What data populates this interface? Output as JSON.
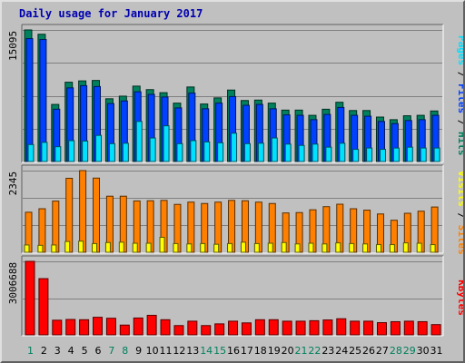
{
  "title": "Daily usage for January 2017",
  "colors": {
    "hits": "#00805c",
    "files": "#0040ff",
    "pages": "#00e0ff",
    "visits": "#ffff00",
    "sites": "#ff8000",
    "kbytes": "#ff0000",
    "weekend_label": "#00805c",
    "weekday_label": "#000000"
  },
  "chart_data": [
    {
      "type": "bar",
      "panel": "hits-files-pages",
      "categories": [
        "1",
        "2",
        "3",
        "4",
        "5",
        "6",
        "7",
        "8",
        "9",
        "10",
        "11",
        "12",
        "13",
        "14",
        "15",
        "16",
        "17",
        "18",
        "19",
        "20",
        "21",
        "22",
        "23",
        "24",
        "25",
        "26",
        "27",
        "28",
        "29",
        "30",
        "31"
      ],
      "weekend_days": [
        "1",
        "7",
        "8",
        "14",
        "15",
        "21",
        "22",
        "28",
        "29"
      ],
      "ymax_label": "15095",
      "ylim": [
        0,
        15095
      ],
      "legend": [
        {
          "name": "Hits",
          "color_key": "hits"
        },
        {
          "name": "Files",
          "color_key": "files"
        },
        {
          "name": "Pages",
          "color_key": "pages"
        }
      ],
      "legend_separator": " / ",
      "series": [
        {
          "name": "Hits",
          "color_key": "hits",
          "values": [
            15095,
            14600,
            6550,
            9100,
            9250,
            9300,
            7200,
            7500,
            8650,
            8250,
            7900,
            6700,
            8550,
            6600,
            7300,
            8200,
            7000,
            7050,
            6700,
            5900,
            5900,
            5300,
            6000,
            6800,
            5850,
            5850,
            5100,
            4800,
            5250,
            5300,
            5800
          ]
        },
        {
          "name": "Files",
          "color_key": "files",
          "values": [
            14100,
            14000,
            6000,
            8450,
            8700,
            8600,
            6650,
            6950,
            8000,
            7700,
            7400,
            6150,
            7850,
            6050,
            6700,
            7450,
            6450,
            6550,
            6050,
            5350,
            5300,
            4800,
            5400,
            6200,
            5300,
            5200,
            4600,
            4350,
            4700,
            4800,
            5300
          ]
        },
        {
          "name": "Pages",
          "color_key": "pages",
          "values": [
            1950,
            2200,
            1700,
            2400,
            2350,
            3000,
            2050,
            2100,
            4600,
            2700,
            4100,
            2050,
            2400,
            2250,
            2150,
            3250,
            2050,
            2100,
            2700,
            2000,
            1850,
            2000,
            1650,
            2100,
            1400,
            1550,
            1400,
            1550,
            1650,
            1550,
            1550
          ]
        }
      ]
    },
    {
      "type": "bar",
      "panel": "sites-visits",
      "ymax_label": "2345",
      "ylim": [
        0,
        2345
      ],
      "legend": [
        {
          "name": "Sites",
          "color_key": "sites"
        },
        {
          "name": "Visits",
          "color_key": "visits"
        }
      ],
      "legend_separator": " / ",
      "series": [
        {
          "name": "Sites",
          "color_key": "sites",
          "values": [
            1150,
            1250,
            1470,
            2125,
            2345,
            2130,
            1610,
            1610,
            1475,
            1480,
            1490,
            1375,
            1440,
            1400,
            1440,
            1490,
            1480,
            1440,
            1400,
            1130,
            1140,
            1220,
            1310,
            1380,
            1250,
            1210,
            1100,
            920,
            1120,
            1180,
            1300
          ]
        },
        {
          "name": "Visits",
          "color_key": "visits",
          "values": [
            210,
            200,
            210,
            310,
            320,
            250,
            280,
            290,
            260,
            260,
            430,
            250,
            240,
            250,
            230,
            250,
            290,
            250,
            260,
            280,
            240,
            260,
            240,
            270,
            250,
            240,
            220,
            220,
            270,
            260,
            220
          ]
        }
      ]
    },
    {
      "type": "bar",
      "panel": "kbytes",
      "ymax_label": "3006688",
      "ylim": [
        0,
        3006688
      ],
      "legend": [
        {
          "name": "KBytes",
          "color_key": "kbytes"
        }
      ],
      "series": [
        {
          "name": "KBytes",
          "color_key": "kbytes",
          "values": [
            3006688,
            2300000,
            600000,
            630000,
            620000,
            720000,
            680000,
            400000,
            690000,
            800000,
            620000,
            380000,
            560000,
            380000,
            450000,
            560000,
            490000,
            620000,
            620000,
            560000,
            560000,
            580000,
            610000,
            660000,
            560000,
            560000,
            500000,
            540000,
            560000,
            540000,
            420000
          ]
        }
      ]
    }
  ]
}
